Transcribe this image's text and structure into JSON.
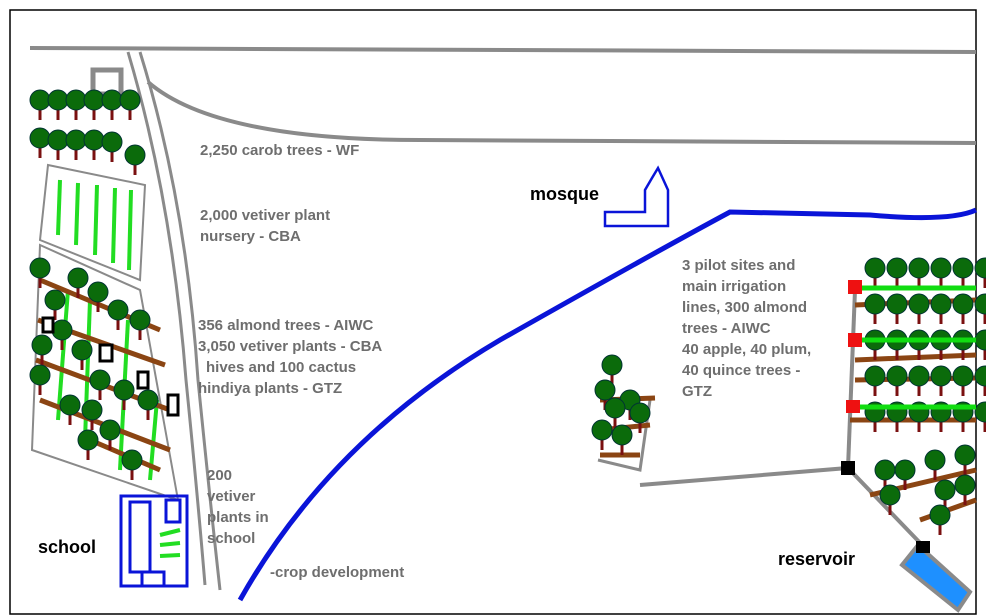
{
  "labels": [
    {
      "lines": [
        "2,250 carob trees - WF"
      ]
    },
    {
      "lines": [
        "2,000 vetiver plant",
        "nursery - CBA"
      ]
    },
    {
      "lines": [
        "356 almond trees - AIWC",
        "3,050 vetiver plants - CBA",
        "hives  and 100 cactus",
        "hindiya plants - GTZ"
      ]
    },
    {
      "lines": [
        "200",
        "vetiver",
        "plants in",
        "school"
      ]
    },
    {
      "lines": [
        "-crop development"
      ]
    },
    {
      "lines": [
        "3 pilot sites and",
        "main irrigation",
        "lines, 300 almond",
        "trees - AIWC",
        "40 apple, 40 plum,",
        "40 quince trees -",
        "GTZ"
      ]
    }
  ],
  "places": {
    "mosque": "mosque",
    "school": "school",
    "reservoir": "reservoir"
  }
}
